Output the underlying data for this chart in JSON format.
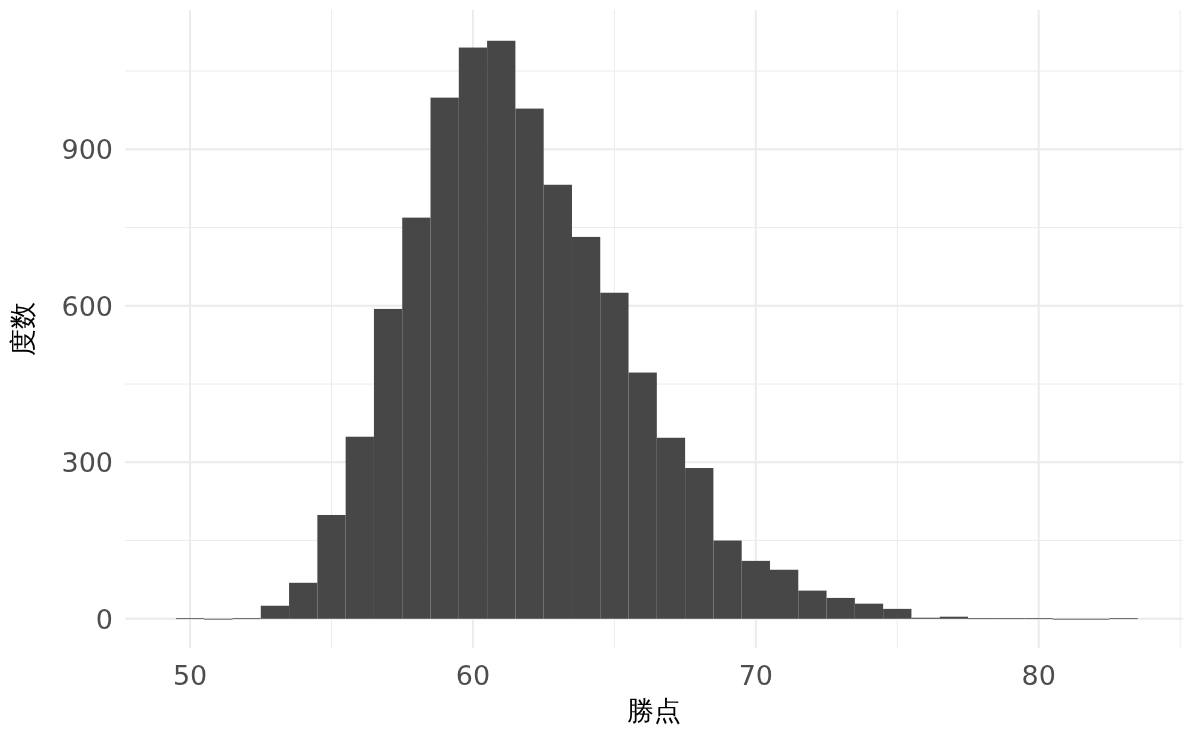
{
  "chart_data": {
    "type": "histogram",
    "xlabel": "勝点",
    "ylabel": "度数",
    "color": "#474747",
    "bins": [
      49.5,
      50.5,
      51.5,
      52.5,
      53.5,
      54.5,
      55.5,
      56.5,
      57.5,
      58.5,
      59.5,
      60.5,
      61.5,
      62.5,
      63.5,
      64.5,
      65.5,
      66.5,
      67.5,
      68.5,
      69.5,
      70.5,
      71.5,
      72.5,
      73.5,
      74.5,
      75.5,
      76.5,
      77.5,
      78.5,
      79.5,
      80.5,
      81.5,
      82.5,
      83.5
    ],
    "values": [
      1,
      0,
      1,
      25,
      69,
      199,
      349,
      594,
      769,
      999,
      1095,
      1108,
      978,
      832,
      732,
      625,
      472,
      347,
      289,
      150,
      111,
      94,
      54,
      40,
      29,
      19,
      2,
      4,
      1,
      1,
      1,
      0,
      0,
      1
    ],
    "xlim": [
      47.7,
      85.1
    ],
    "ylim": [
      -56,
      1167
    ],
    "xticks": [
      50,
      {
        "value": 55,
        "label": null
      },
      60,
      {
        "value": 65,
        "label": null
      },
      70,
      {
        "value": 75,
        "label": null
      },
      80,
      {
        "value": 85,
        "label": null
      }
    ],
    "yticks": [
      0,
      {
        "value": 150,
        "label": null
      },
      300,
      {
        "value": 450,
        "label": null
      },
      600,
      {
        "value": 750,
        "label": null
      },
      900,
      {
        "value": 1050,
        "label": null
      }
    ],
    "grid": true
  }
}
